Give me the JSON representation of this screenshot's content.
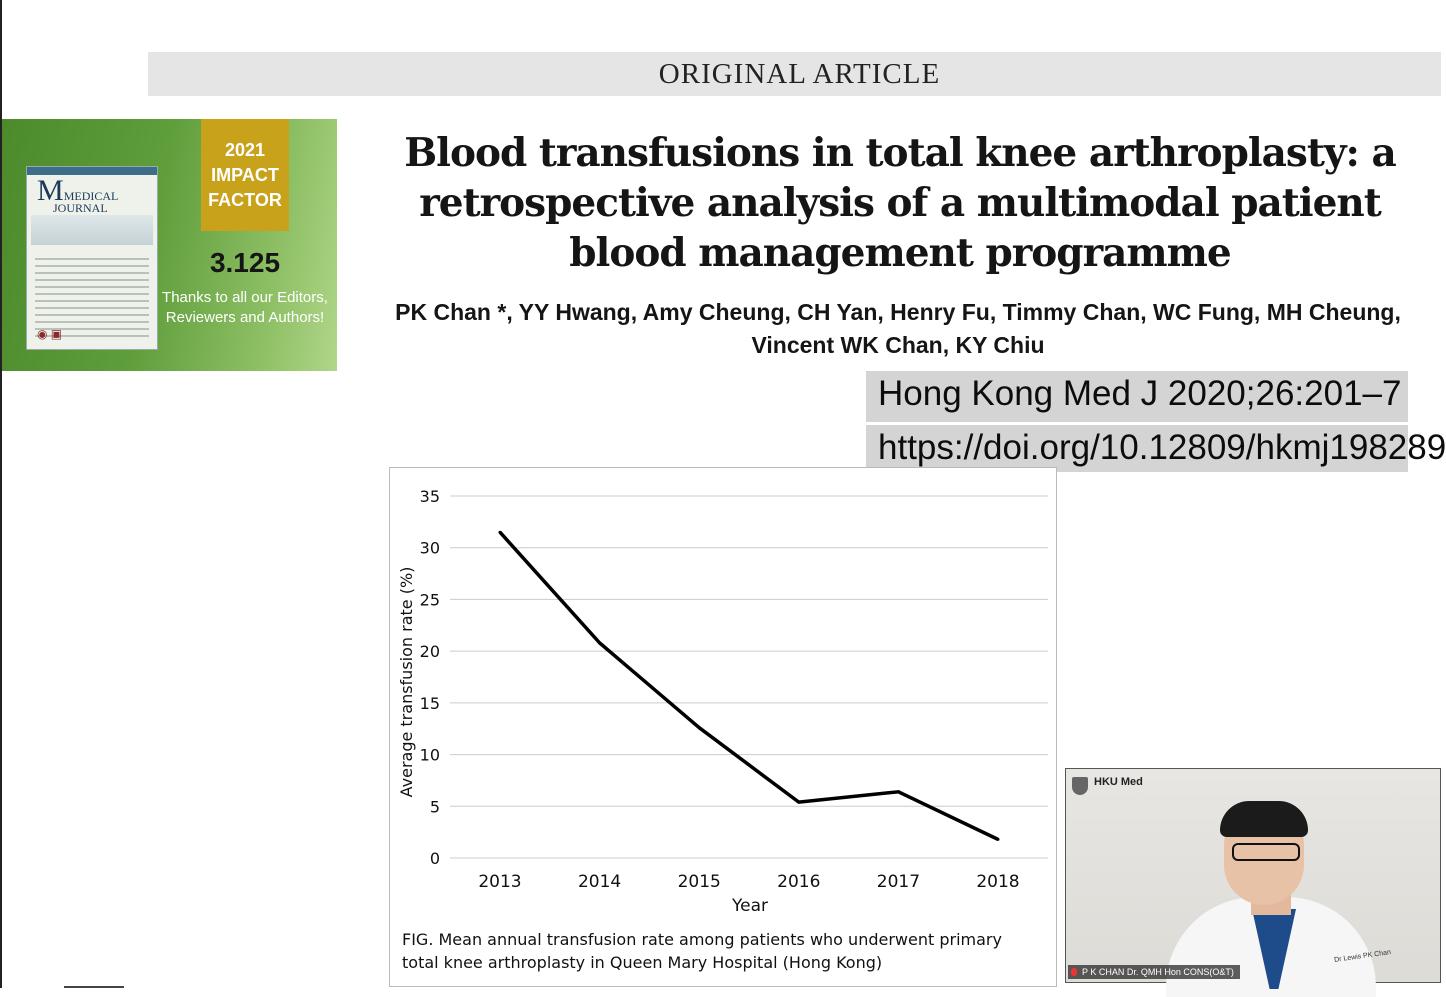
{
  "header": {
    "section_label": "ORIGINAL ARTICLE"
  },
  "promo": {
    "journal_name_line1": "MEDICAL",
    "journal_name_line2": "JOURNAL",
    "impact_year": "2021",
    "impact_label_1": "IMPACT",
    "impact_label_2": "FACTOR",
    "impact_value": "3.125",
    "thanks_text": "Thanks to all our Editors, Reviewers and Authors!"
  },
  "article": {
    "title": "Blood transfusions in total knee arthroplasty: a retrospective analysis of a multimodal patient blood management programme",
    "authors_line1": "PK Chan *, YY Hwang, Amy Cheung, CH Yan, Henry Fu, Timmy Chan, WC Fung, MH Cheung,",
    "authors_line2": "Vincent WK Chan, KY Chiu",
    "citation": "Hong Kong Med J 2020;26:201–7",
    "doi": "https://doi.org/10.12809/hkmj198289"
  },
  "chart_data": {
    "type": "line",
    "categories": [
      "2013",
      "2014",
      "2015",
      "2016",
      "2017",
      "2018"
    ],
    "series": [
      {
        "values": [
          31.5,
          20.8,
          12.6,
          5.4,
          6.4,
          1.8
        ]
      }
    ],
    "xlabel": "Year",
    "ylabel": "Average transfusion rate (%)",
    "ylim": [
      0,
      35
    ],
    "yticks": [
      0,
      5,
      10,
      15,
      20,
      25,
      30,
      35
    ],
    "grid": true,
    "caption": "FIG.  Mean annual transfusion rate among patients who underwent primary total knee arthroplasty in Queen Mary Hospital (Hong Kong)"
  },
  "video": {
    "logo_text": "HKU Med",
    "participant_name": "P K CHAN Dr. QMH Hon CONS(O&T)",
    "badge_text": "Dr Lewis PK Chan"
  },
  "colors": {
    "header_bg": "#e5e5e5",
    "promo_green": "#5f9e3b",
    "impact_gold": "#c8a21a",
    "citation_bg": "#d4d4d4",
    "line_color": "#000000"
  }
}
